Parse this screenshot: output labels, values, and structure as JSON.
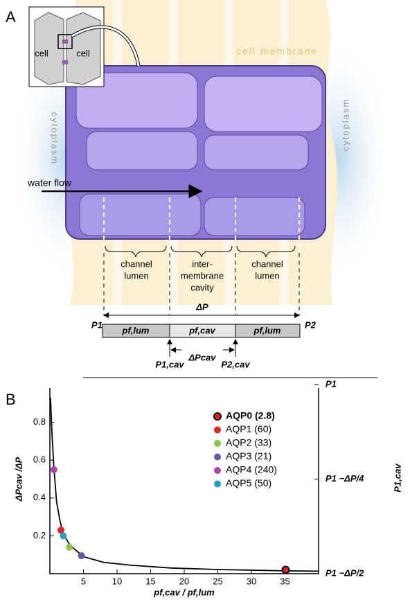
{
  "panel_a": {
    "label": "A",
    "inset_cells": [
      "cell",
      "cell"
    ],
    "membrane": "cell membrane",
    "cytoplasm": [
      "cytoplasm",
      "cytoplasm"
    ],
    "flow": "water flow",
    "regions": [
      [
        "channel",
        "lumen"
      ],
      [
        "inter-",
        "membrane",
        "cavity"
      ],
      [
        "channel",
        "lumen"
      ]
    ],
    "p_left": "P1",
    "delta_p": "ΔP",
    "p_right": "P2",
    "segments": [
      "pf,lum",
      "pf,cav",
      "pf,lum"
    ],
    "p1cav": "P1,cav",
    "delta_pcav": "ΔPcav",
    "p2cav": "P2,cav"
  },
  "panel_b": {
    "label": "B"
  },
  "chart_data": {
    "type": "scatter",
    "ylabel": "ΔPcav /ΔP",
    "xlabel": "pf,cav / pf,lum",
    "y2label": "P1,cav",
    "xlim": [
      0,
      40
    ],
    "xticks": [
      5,
      10,
      15,
      20,
      25,
      30,
      35
    ],
    "ylim": [
      0,
      1
    ],
    "yticks": [
      0.2,
      0.4,
      0.6,
      0.8
    ],
    "y2ticks": [
      {
        "value": 1,
        "label": "P1"
      },
      {
        "value": 0.5,
        "label": "P1 −ΔP/4"
      },
      {
        "value": 0,
        "label": "P1 −ΔP/2"
      }
    ],
    "series": [
      {
        "name": "AQP0 (2.8)",
        "color": "#e8231f",
        "highlight": true,
        "x": [
          35.1
        ],
        "values": [
          0.02
        ]
      },
      {
        "name": "AQP1 (60)",
        "color": "#e8231f",
        "x": [
          1.65
        ],
        "values": [
          0.23
        ]
      },
      {
        "name": "AQP2 (33)",
        "color": "#8cc63f",
        "x": [
          2.9
        ],
        "values": [
          0.14
        ]
      },
      {
        "name": "AQP3 (21)",
        "color": "#6a55a4",
        "x": [
          4.7
        ],
        "values": [
          0.095
        ]
      },
      {
        "name": "AQP4 (240)",
        "color": "#a54aa6",
        "x": [
          0.6
        ],
        "values": [
          0.55
        ]
      },
      {
        "name": "AQP5 (50)",
        "color": "#1ea2c9",
        "x": [
          2.0
        ],
        "values": [
          0.2
        ]
      }
    ],
    "curve": {
      "color": "#000000",
      "x": [
        0.1,
        0.3,
        0.6,
        1,
        1.5,
        2,
        3,
        5,
        8,
        12,
        18,
        25,
        35,
        40
      ],
      "values": [
        0.93,
        0.75,
        0.56,
        0.38,
        0.28,
        0.21,
        0.15,
        0.09,
        0.06,
        0.045,
        0.03,
        0.022,
        0.015,
        0.013
      ]
    }
  }
}
